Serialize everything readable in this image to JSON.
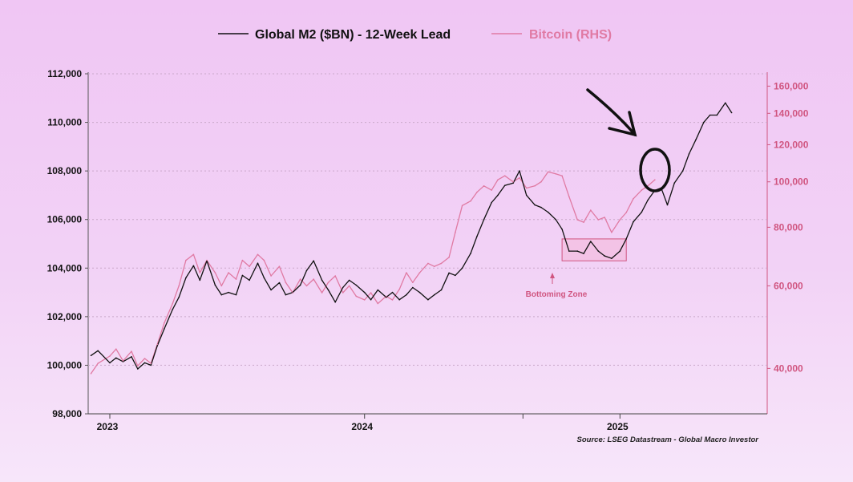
{
  "chart_data": {
    "type": "line",
    "title": "",
    "xlabel": "",
    "ylabel": "",
    "x_ticks": [
      "2023",
      "2024",
      "2025"
    ],
    "x_range": [
      "2022-12",
      "2025-07"
    ],
    "y_left": {
      "ticks": [
        "98,000",
        "100,000",
        "102,000",
        "104,000",
        "106,000",
        "108,000",
        "110,000",
        "112,000"
      ],
      "range": [
        98000,
        112000
      ]
    },
    "y_right": {
      "ticks": [
        "40,000",
        "60,000",
        "80,000",
        "100,000",
        "120,000",
        "140,000",
        "160,000"
      ],
      "range": [
        32000,
        170000
      ],
      "scale": "log"
    },
    "grid": "horizontal dotted",
    "legend_position": "top-center",
    "series": [
      {
        "name": "Global M2 ($BN) - 12-Week Lead",
        "axis": "left",
        "color": "#111111",
        "points": [
          [
            "2022-12-05",
            100400
          ],
          [
            "2022-12-15",
            100600
          ],
          [
            "2023-01-01",
            100100
          ],
          [
            "2023-01-10",
            100300
          ],
          [
            "2023-01-20",
            100150
          ],
          [
            "2023-02-01",
            100350
          ],
          [
            "2023-02-10",
            99850
          ],
          [
            "2023-02-20",
            100100
          ],
          [
            "2023-03-01",
            100000
          ],
          [
            "2023-03-10",
            100800
          ],
          [
            "2023-03-20",
            101500
          ],
          [
            "2023-04-01",
            102300
          ],
          [
            "2023-04-10",
            102800
          ],
          [
            "2023-04-20",
            103600
          ],
          [
            "2023-05-01",
            104100
          ],
          [
            "2023-05-10",
            103500
          ],
          [
            "2023-05-20",
            104300
          ],
          [
            "2023-06-01",
            103300
          ],
          [
            "2023-06-10",
            102900
          ],
          [
            "2023-06-20",
            103000
          ],
          [
            "2023-07-01",
            102900
          ],
          [
            "2023-07-10",
            103700
          ],
          [
            "2023-07-20",
            103500
          ],
          [
            "2023-08-01",
            104200
          ],
          [
            "2023-08-10",
            103600
          ],
          [
            "2023-08-20",
            103100
          ],
          [
            "2023-09-01",
            103400
          ],
          [
            "2023-09-10",
            102900
          ],
          [
            "2023-09-20",
            103000
          ],
          [
            "2023-10-01",
            103300
          ],
          [
            "2023-10-10",
            103900
          ],
          [
            "2023-10-20",
            104300
          ],
          [
            "2023-11-01",
            103500
          ],
          [
            "2023-11-10",
            103100
          ],
          [
            "2023-11-20",
            102600
          ],
          [
            "2023-12-01",
            103200
          ],
          [
            "2023-12-10",
            103500
          ],
          [
            "2023-12-20",
            103300
          ],
          [
            "2024-01-01",
            103000
          ],
          [
            "2024-01-10",
            102700
          ],
          [
            "2024-01-20",
            103100
          ],
          [
            "2024-02-01",
            102800
          ],
          [
            "2024-02-10",
            103000
          ],
          [
            "2024-02-20",
            102700
          ],
          [
            "2024-03-01",
            102900
          ],
          [
            "2024-03-10",
            103200
          ],
          [
            "2024-03-20",
            103000
          ],
          [
            "2024-04-01",
            102700
          ],
          [
            "2024-04-10",
            102900
          ],
          [
            "2024-04-20",
            103100
          ],
          [
            "2024-05-01",
            103800
          ],
          [
            "2024-05-10",
            103700
          ],
          [
            "2024-05-20",
            104000
          ],
          [
            "2024-06-01",
            104600
          ],
          [
            "2024-06-10",
            105300
          ],
          [
            "2024-06-20",
            106000
          ],
          [
            "2024-07-01",
            106700
          ],
          [
            "2024-07-10",
            107000
          ],
          [
            "2024-07-20",
            107400
          ],
          [
            "2024-08-01",
            107500
          ],
          [
            "2024-08-10",
            108000
          ],
          [
            "2024-08-20",
            107000
          ],
          [
            "2024-09-01",
            106600
          ],
          [
            "2024-09-10",
            106500
          ],
          [
            "2024-09-20",
            106300
          ],
          [
            "2024-10-01",
            106000
          ],
          [
            "2024-10-10",
            105600
          ],
          [
            "2024-10-20",
            104700
          ],
          [
            "2024-11-01",
            104700
          ],
          [
            "2024-11-10",
            104600
          ],
          [
            "2024-11-20",
            105100
          ],
          [
            "2024-12-01",
            104700
          ],
          [
            "2024-12-10",
            104500
          ],
          [
            "2024-12-20",
            104400
          ],
          [
            "2025-01-01",
            104700
          ],
          [
            "2025-01-10",
            105200
          ],
          [
            "2025-01-20",
            105900
          ],
          [
            "2025-02-01",
            106300
          ],
          [
            "2025-02-10",
            106800
          ],
          [
            "2025-02-20",
            107200
          ],
          [
            "2025-03-01",
            107300
          ],
          [
            "2025-03-10",
            106600
          ],
          [
            "2025-03-20",
            107500
          ],
          [
            "2025-04-01",
            108000
          ],
          [
            "2025-04-10",
            108700
          ],
          [
            "2025-04-20",
            109300
          ],
          [
            "2025-05-01",
            110000
          ],
          [
            "2025-05-10",
            110300
          ],
          [
            "2025-05-20",
            110300
          ],
          [
            "2025-06-01",
            110800
          ],
          [
            "2025-06-10",
            110400
          ]
        ]
      },
      {
        "name": "Bitcoin (RHS)",
        "axis": "right",
        "color": "#e07aa3",
        "points": [
          [
            "2022-12-05",
            39000
          ],
          [
            "2022-12-15",
            41000
          ],
          [
            "2023-01-01",
            42500
          ],
          [
            "2023-01-10",
            44000
          ],
          [
            "2023-01-20",
            41500
          ],
          [
            "2023-02-01",
            43500
          ],
          [
            "2023-02-10",
            40500
          ],
          [
            "2023-02-20",
            42000
          ],
          [
            "2023-03-01",
            41000
          ],
          [
            "2023-03-10",
            45000
          ],
          [
            "2023-03-20",
            50000
          ],
          [
            "2023-04-01",
            55000
          ],
          [
            "2023-04-10",
            60000
          ],
          [
            "2023-04-20",
            68000
          ],
          [
            "2023-05-01",
            70000
          ],
          [
            "2023-05-10",
            64000
          ],
          [
            "2023-05-20",
            68000
          ],
          [
            "2023-06-01",
            64000
          ],
          [
            "2023-06-10",
            60000
          ],
          [
            "2023-06-20",
            64000
          ],
          [
            "2023-07-01",
            62000
          ],
          [
            "2023-07-10",
            68000
          ],
          [
            "2023-07-20",
            66000
          ],
          [
            "2023-08-01",
            70000
          ],
          [
            "2023-08-10",
            68000
          ],
          [
            "2023-08-20",
            63000
          ],
          [
            "2023-09-01",
            66000
          ],
          [
            "2023-09-10",
            61000
          ],
          [
            "2023-09-20",
            58000
          ],
          [
            "2023-10-01",
            62000
          ],
          [
            "2023-10-10",
            60000
          ],
          [
            "2023-10-20",
            62000
          ],
          [
            "2023-11-01",
            58000
          ],
          [
            "2023-11-10",
            61000
          ],
          [
            "2023-11-20",
            63000
          ],
          [
            "2023-12-01",
            58000
          ],
          [
            "2023-12-10",
            60000
          ],
          [
            "2023-12-20",
            57000
          ],
          [
            "2024-01-01",
            56000
          ],
          [
            "2024-01-10",
            58000
          ],
          [
            "2024-01-20",
            55000
          ],
          [
            "2024-02-01",
            57000
          ],
          [
            "2024-02-10",
            56000
          ],
          [
            "2024-02-20",
            59000
          ],
          [
            "2024-03-01",
            64000
          ],
          [
            "2024-03-10",
            61000
          ],
          [
            "2024-03-20",
            64000
          ],
          [
            "2024-04-01",
            67000
          ],
          [
            "2024-04-10",
            66000
          ],
          [
            "2024-04-20",
            67000
          ],
          [
            "2024-05-01",
            69000
          ],
          [
            "2024-05-10",
            78000
          ],
          [
            "2024-05-20",
            89000
          ],
          [
            "2024-06-01",
            91000
          ],
          [
            "2024-06-10",
            95000
          ],
          [
            "2024-06-20",
            98000
          ],
          [
            "2024-07-01",
            96000
          ],
          [
            "2024-07-10",
            101000
          ],
          [
            "2024-07-20",
            103000
          ],
          [
            "2024-08-01",
            100000
          ],
          [
            "2024-08-10",
            102000
          ],
          [
            "2024-08-20",
            97000
          ],
          [
            "2024-09-01",
            98000
          ],
          [
            "2024-09-10",
            100000
          ],
          [
            "2024-09-20",
            105000
          ],
          [
            "2024-10-01",
            104000
          ],
          [
            "2024-10-10",
            103000
          ],
          [
            "2024-10-20",
            93000
          ],
          [
            "2024-11-01",
            83000
          ],
          [
            "2024-11-10",
            82000
          ],
          [
            "2024-11-20",
            87000
          ],
          [
            "2024-12-01",
            83000
          ],
          [
            "2024-12-10",
            84000
          ],
          [
            "2024-12-20",
            78000
          ],
          [
            "2025-01-01",
            83000
          ],
          [
            "2025-01-10",
            86000
          ],
          [
            "2025-01-20",
            92000
          ],
          [
            "2025-02-01",
            96000
          ],
          [
            "2025-02-10",
            98000
          ],
          [
            "2025-02-20",
            101000
          ]
        ]
      }
    ],
    "annotations": [
      {
        "text": "Bottoming Zone",
        "region_x": [
          "2024-10-10",
          "2025-01-10"
        ],
        "region_y_left": [
          104300,
          105200
        ]
      }
    ],
    "source": "Source: LSEG Datastream - Global Macro Investor"
  },
  "colors": {
    "m2_line": "#111111",
    "btc_line": "#e07aa3",
    "right_axis": "#d05580",
    "grid": "#c9a8c9"
  }
}
